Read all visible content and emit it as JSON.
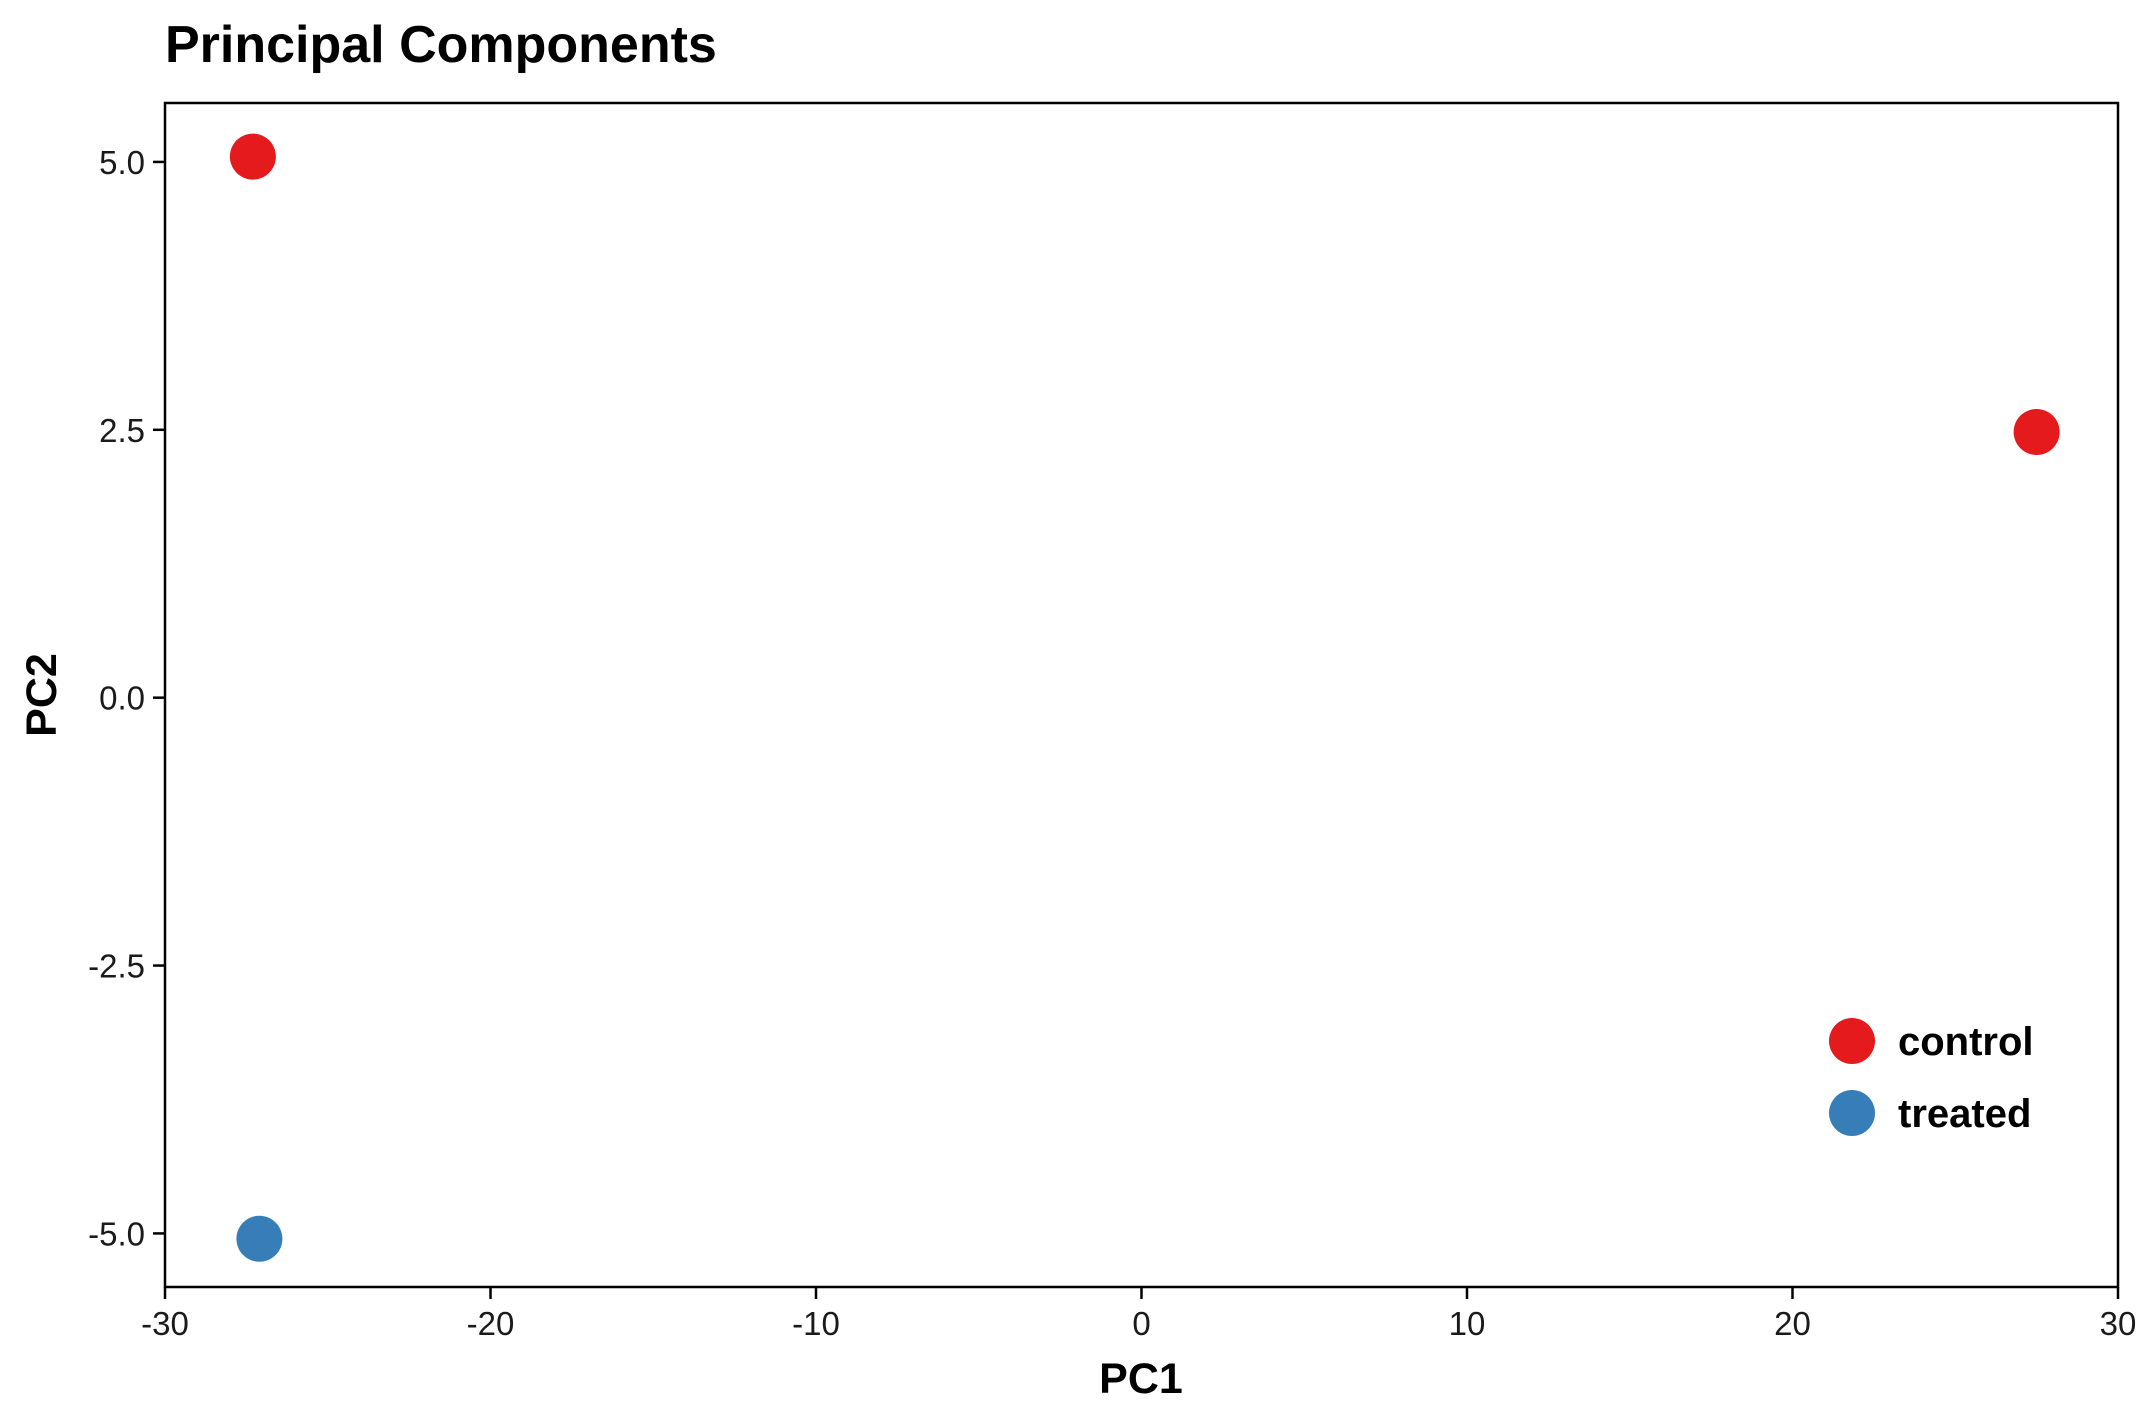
{
  "chart_data": {
    "type": "scatter",
    "title": "Principal Components",
    "xlabel": "PC1",
    "ylabel": "PC2",
    "xlim": [
      -30,
      30
    ],
    "ylim": [
      -5.5,
      5.55
    ],
    "x_ticks": [
      -30,
      -20,
      -10,
      0,
      10,
      20,
      30
    ],
    "x_tick_labels": [
      "-30",
      "-20",
      "-10",
      "0",
      "10",
      "20",
      "30"
    ],
    "y_ticks": [
      5.0,
      2.5,
      0.0,
      -2.5,
      -5.0
    ],
    "y_tick_labels": [
      "5.0",
      "2.5",
      "0.0",
      "-2.5",
      "-5.0"
    ],
    "grid": false,
    "legend_position": "bottom-right",
    "series": [
      {
        "name": "control",
        "color": "#e41a1c",
        "points": [
          {
            "x": -27.3,
            "y": 5.05
          },
          {
            "x": 27.5,
            "y": 2.48
          }
        ]
      },
      {
        "name": "treated",
        "color": "#377eb8",
        "points": [
          {
            "x": -27.1,
            "y": -5.05
          }
        ]
      }
    ]
  }
}
